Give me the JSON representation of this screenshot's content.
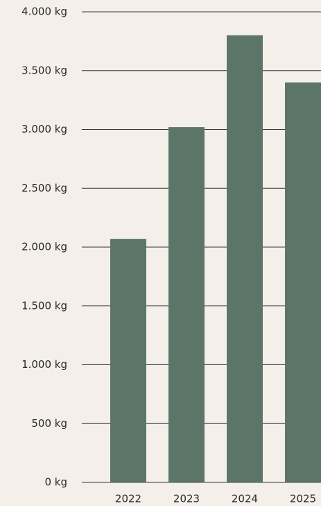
{
  "chart_data": {
    "type": "bar",
    "categories": [
      "2022",
      "2023",
      "2024",
      "2025"
    ],
    "values": [
      2070,
      3020,
      3800,
      3400
    ],
    "color": "#5b7569",
    "ylim": [
      0,
      4000
    ],
    "yticks": [
      {
        "value": 0,
        "label": "0 kg"
      },
      {
        "value": 500,
        "label": "500 kg"
      },
      {
        "value": 1000,
        "label": "1.000 kg"
      },
      {
        "value": 1500,
        "label": "1.500 kg"
      },
      {
        "value": 2000,
        "label": "2.000 kg"
      },
      {
        "value": 2500,
        "label": "2.500 kg"
      },
      {
        "value": 3000,
        "label": "3.000 kg"
      },
      {
        "value": 3500,
        "label": "3.500 kg"
      },
      {
        "value": 4000,
        "label": "4.000 kg"
      }
    ],
    "grid": true
  }
}
